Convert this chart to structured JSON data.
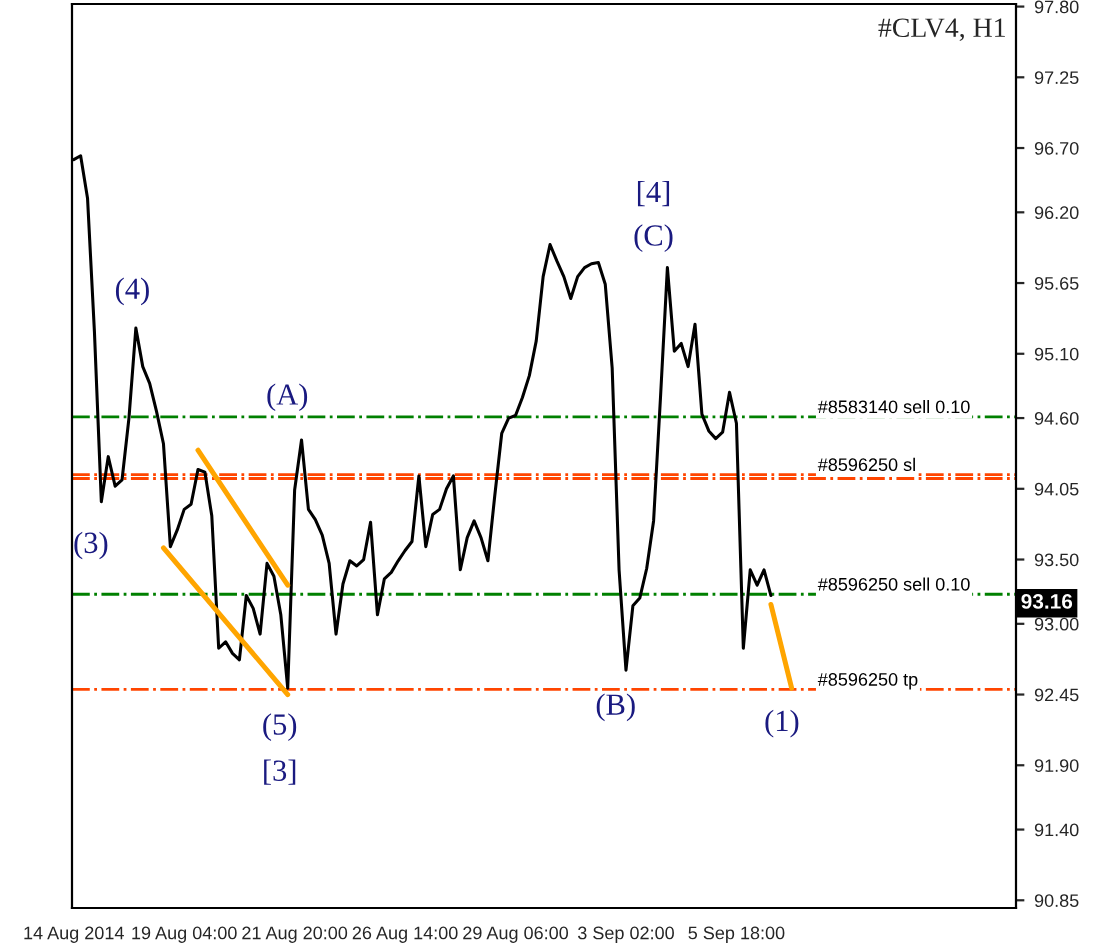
{
  "chart_data": {
    "type": "line",
    "title": "#CLV4, H1",
    "categories": [
      "14 Aug 2014",
      null,
      null,
      null,
      null,
      null,
      null,
      null,
      null,
      null,
      null,
      null,
      null,
      null,
      null,
      null,
      "19 Aug 04:00",
      null,
      null,
      null,
      null,
      null,
      null,
      null,
      null,
      null,
      null,
      null,
      null,
      null,
      null,
      null,
      "21 Aug 20:00",
      null,
      null,
      null,
      null,
      null,
      null,
      null,
      null,
      null,
      null,
      null,
      null,
      null,
      null,
      null,
      "26 Aug 14:00",
      null,
      null,
      null,
      null,
      null,
      null,
      null,
      null,
      null,
      null,
      null,
      null,
      null,
      null,
      null,
      "29 Aug 06:00",
      null,
      null,
      null,
      null,
      null,
      null,
      null,
      null,
      null,
      null,
      null,
      null,
      null,
      null,
      null,
      "3 Sep 02:00",
      null,
      null,
      null,
      null,
      null,
      null,
      null,
      null,
      null,
      null,
      null,
      null,
      null,
      null,
      null,
      "5 Sep 18:00",
      null,
      null,
      null,
      null,
      null,
      null,
      null,
      null,
      null,
      null,
      null,
      null,
      null,
      null,
      null,
      null,
      null,
      null,
      null,
      null,
      null,
      null,
      null,
      null,
      null,
      null,
      null,
      null,
      null,
      null,
      null,
      null,
      null,
      null,
      null,
      null,
      null,
      null,
      null,
      null
    ],
    "ylim": [
      90.79,
      97.82
    ],
    "yticks": [
      {
        "value": 90.85,
        "label": "90.85"
      },
      {
        "value": 91.4,
        "label": "91.40"
      },
      {
        "value": 91.9,
        "label": "91.90"
      },
      92.45,
      {
        "value": 93.0,
        "label": "93.00"
      },
      {
        "value": 93.5,
        "label": "93.50"
      },
      94.05,
      {
        "value": 94.6,
        "label": "94.60"
      },
      {
        "value": 95.1,
        "label": "95.10"
      },
      95.65,
      {
        "value": 96.2,
        "label": "96.20"
      },
      {
        "value": 96.7,
        "label": "96.70"
      },
      97.25,
      {
        "value": 97.8,
        "label": "97.80"
      }
    ],
    "grid": false,
    "legend": false,
    "marker": "none",
    "line_style": "solid",
    "series": [
      {
        "color": "#000000",
        "values": [
          96.61,
          96.64,
          96.31,
          95.27,
          93.95,
          94.3,
          94.07,
          94.12,
          94.6,
          95.3,
          95.0,
          94.87,
          94.65,
          94.4,
          93.6,
          93.73,
          93.89,
          93.93,
          94.2,
          94.18,
          93.84,
          92.81,
          92.86,
          92.77,
          92.72,
          93.22,
          93.12,
          92.92,
          93.47,
          93.37,
          93.07,
          92.5,
          94.04,
          94.43,
          93.89,
          93.81,
          93.69,
          93.47,
          92.92,
          93.31,
          93.49,
          93.45,
          93.5,
          93.79,
          93.07,
          93.35,
          93.4,
          93.49,
          93.57,
          93.64,
          94.15,
          93.6,
          93.85,
          93.89,
          94.05,
          94.15,
          93.42,
          93.67,
          93.8,
          93.67,
          93.49,
          94.0,
          94.48,
          94.6,
          94.62,
          94.76,
          94.93,
          95.2,
          95.7,
          95.95,
          95.82,
          95.7,
          95.53,
          95.7,
          95.77,
          95.8,
          95.81,
          95.64,
          94.99,
          93.42,
          92.64,
          93.14,
          93.2,
          93.43,
          93.8,
          94.76,
          95.77,
          95.12,
          95.18,
          95.0,
          95.33,
          94.63,
          94.5,
          94.44,
          94.49,
          94.8,
          94.56,
          92.81,
          93.42,
          93.3,
          93.42,
          93.22,
          null,
          null,
          null,
          null,
          null,
          null,
          null,
          null,
          null,
          null,
          null,
          null,
          null,
          null,
          null,
          null,
          null,
          null,
          null,
          null,
          null,
          null,
          null,
          null,
          null,
          null,
          null,
          null,
          null,
          null,
          null,
          null,
          null,
          null,
          null
        ]
      },
      {
        "color": "#ffa500",
        "values": [
          null,
          null,
          null,
          null,
          null,
          null,
          null,
          null,
          null,
          null,
          null,
          null,
          null,
          null,
          null,
          null,
          null,
          null,
          null,
          null,
          null,
          null,
          null,
          null,
          null,
          null,
          null,
          null,
          null,
          null,
          null,
          null,
          null,
          null,
          null,
          null,
          null,
          null,
          null,
          null,
          null,
          null,
          null,
          null,
          null,
          null,
          null,
          null,
          null,
          null,
          null,
          null,
          null,
          null,
          null,
          null,
          null,
          null,
          null,
          null,
          null,
          null,
          null,
          null,
          null,
          null,
          null,
          null,
          null,
          null,
          null,
          null,
          null,
          null,
          null,
          null,
          null,
          null,
          null,
          null,
          null,
          null,
          null,
          null,
          null,
          null,
          null,
          null,
          null,
          null,
          null,
          null,
          null,
          null,
          null,
          null,
          null,
          null,
          null,
          null,
          null,
          93.15,
          null,
          null,
          92.5,
          null,
          null,
          null,
          null,
          null,
          null,
          null,
          null,
          null,
          null,
          null,
          null,
          null,
          null,
          null,
          null,
          null,
          null,
          null,
          null,
          null,
          null,
          null,
          null,
          null,
          null,
          null,
          null,
          null,
          null,
          null,
          null
        ]
      },
      {
        "color": "#ffa500",
        "values": [
          null,
          null,
          null,
          null,
          null,
          null,
          null,
          null,
          null,
          null,
          null,
          null,
          null,
          null,
          null,
          null,
          null,
          null,
          94.35,
          null,
          null,
          null,
          null,
          null,
          null,
          null,
          null,
          null,
          null,
          null,
          null,
          93.3,
          null,
          null,
          null,
          null,
          null,
          null,
          null,
          null,
          null,
          null,
          null,
          null,
          null,
          null,
          null,
          null,
          null,
          null,
          null,
          null,
          null,
          null,
          null,
          null,
          null,
          null,
          null,
          null,
          null,
          null,
          null,
          null,
          null,
          null,
          null,
          null,
          null,
          null,
          null,
          null,
          null,
          null,
          null,
          null,
          null,
          null,
          null,
          null,
          null,
          null,
          null,
          null,
          null,
          null,
          null,
          null,
          null,
          null,
          null,
          null,
          null,
          null,
          null,
          null,
          null,
          null,
          null,
          null,
          null,
          null,
          null,
          null,
          null,
          null,
          null,
          null,
          null,
          null,
          null,
          null,
          null,
          null,
          null,
          null,
          null,
          null,
          null,
          null,
          null,
          null,
          null,
          null,
          null,
          null,
          null,
          null,
          null,
          null,
          null,
          null,
          null,
          null,
          null,
          null,
          null
        ]
      },
      {
        "color": "#ffa500",
        "values": [
          null,
          null,
          null,
          null,
          null,
          null,
          null,
          null,
          null,
          null,
          null,
          null,
          null,
          93.59,
          null,
          null,
          null,
          null,
          null,
          null,
          null,
          null,
          null,
          null,
          null,
          null,
          null,
          null,
          null,
          null,
          null,
          92.45,
          null,
          null,
          null,
          null,
          null,
          null,
          null,
          null,
          null,
          null,
          null,
          null,
          null,
          null,
          null,
          null,
          null,
          null,
          null,
          null,
          null,
          null,
          null,
          null,
          null,
          null,
          null,
          null,
          null,
          null,
          null,
          null,
          null,
          null,
          null,
          null,
          null,
          null,
          null,
          null,
          null,
          null,
          null,
          null,
          null,
          null,
          null,
          null,
          null,
          null,
          null,
          null,
          null,
          null,
          null,
          null,
          null,
          null,
          null,
          null,
          null,
          null,
          null,
          null,
          null,
          null,
          null,
          null,
          null,
          null,
          null,
          null,
          null,
          null,
          null,
          null,
          null,
          null,
          null,
          null,
          null,
          null,
          null,
          null,
          null,
          null,
          null,
          null,
          null,
          null,
          null,
          null,
          null,
          null,
          null,
          null,
          null,
          null,
          null,
          null,
          null,
          null,
          null,
          null,
          null
        ]
      }
    ],
    "ref_lines": [
      {
        "axis": "y",
        "value": 94.61,
        "label": "#8583140 sell 0.10",
        "color": "#008000",
        "line_style": "dashdot"
      },
      {
        "axis": "y",
        "value": 94.16,
        "label": "#8596250 sl",
        "color": "#ff4500",
        "line_style": "dashdot"
      },
      {
        "axis": "y",
        "value": 94.13,
        "label": null,
        "color": "#ff4500",
        "line_style": "dashdot"
      },
      {
        "axis": "y",
        "value": 93.23,
        "label": "#8596250 sell 0.10",
        "color": "#008000",
        "line_style": "dashdot"
      },
      {
        "axis": "y",
        "value": 92.49,
        "label": "#8596250 tp",
        "color": "#ff4500",
        "line_style": "dashdot"
      }
    ],
    "annotations": [
      "(4)",
      "(3)",
      "(A)",
      "(5)",
      "[3]",
      "(B)",
      "[4]",
      "(C)",
      "(1)",
      {
        "text": "93.16",
        "y": 93.16
      }
    ]
  }
}
